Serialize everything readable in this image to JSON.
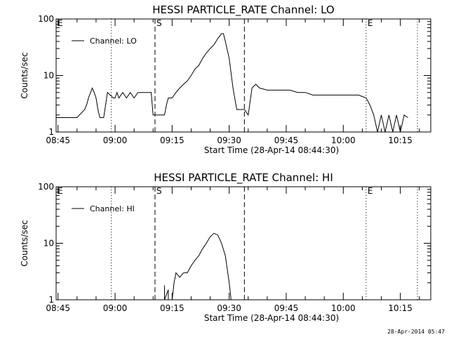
{
  "timestamp": "28-Apr-2014 05:47",
  "chart_data": [
    {
      "type": "line",
      "title": "HESSI PARTICLE_RATE Channel: LO",
      "xlabel": "Start Time (28-Apr-14 08:44:30)",
      "ylabel": "Counts/sec",
      "yscale": "log",
      "ylim": [
        1,
        100
      ],
      "xlim": [
        "08:44:30",
        "10:23:00"
      ],
      "x_ticks": [
        "08:45",
        "09:00",
        "09:15",
        "09:30",
        "09:45",
        "10:00",
        "10:15"
      ],
      "y_ticks": [
        "1",
        "10",
        "100"
      ],
      "legend": "top-left",
      "color": "#000000",
      "markers": [
        {
          "label": "E",
          "time": "08:44:30",
          "style": "none"
        },
        {
          "label": "",
          "time": "08:59:00",
          "style": "dotted"
        },
        {
          "label": "S",
          "time": "09:10:30",
          "style": "dashed"
        },
        {
          "label": "",
          "time": "09:34:00",
          "style": "dashed"
        },
        {
          "label": "E",
          "time": "10:06:00",
          "style": "dotted"
        },
        {
          "label": "",
          "time": "10:19:30",
          "style": "dotted"
        }
      ],
      "series": [
        {
          "name": "Channel: LO",
          "x": [
            "08:44:30",
            "08:46:00",
            "08:48:00",
            "08:50:00",
            "08:52:00",
            "08:52:30",
            "08:53:00",
            "08:54:00",
            "08:54:30",
            "08:55:00",
            "08:55:30",
            "08:56:00",
            "08:56:30",
            "08:57:00",
            "08:58:00",
            "08:59:30",
            "09:00:00",
            "09:00:30",
            "09:01:00",
            "09:02:00",
            "09:03:00",
            "09:04:00",
            "09:05:00",
            "09:06:00",
            "09:07:00",
            "09:08:00",
            "09:09:00",
            "09:09:30",
            "09:10:00",
            "09:11:00",
            "09:12:00",
            "09:13:00",
            "09:13:30",
            "09:14:00",
            "09:15:00",
            "09:16:00",
            "09:17:00",
            "09:18:00",
            "09:19:00",
            "09:20:00",
            "09:21:00",
            "09:22:00",
            "09:23:00",
            "09:24:00",
            "09:25:00",
            "09:26:00",
            "09:27:00",
            "09:28:00",
            "09:28:30",
            "09:29:00",
            "09:30:00",
            "09:31:00",
            "09:32:00",
            "09:33:00",
            "09:34:00",
            "09:35:00",
            "09:36:00",
            "09:37:00",
            "09:38:00",
            "09:40:00",
            "09:42:00",
            "09:44:00",
            "09:46:00",
            "09:48:00",
            "09:50:00",
            "09:52:00",
            "09:54:00",
            "09:56:00",
            "09:58:00",
            "10:00:00",
            "10:02:00",
            "10:04:00",
            "10:06:00",
            "10:07:00",
            "10:08:00",
            "10:09:00",
            "10:10:00",
            "10:11:00",
            "10:12:00",
            "10:13:00",
            "10:14:00",
            "10:15:00",
            "10:16:00",
            "10:17:00"
          ],
          "y": [
            1.8,
            1.8,
            1.8,
            1.8,
            2.5,
            3,
            4,
            6,
            5,
            4,
            2.5,
            1.8,
            1.8,
            1.8,
            5,
            4,
            4,
            5,
            4,
            5,
            4,
            5,
            4,
            5,
            5,
            5,
            5,
            5,
            2,
            2,
            2,
            2,
            3,
            4,
            4,
            5,
            6,
            7,
            8,
            10,
            13,
            15,
            20,
            25,
            30,
            35,
            45,
            55,
            55,
            40,
            20,
            6,
            2.5,
            2.5,
            2.5,
            2,
            6,
            7,
            6,
            5.5,
            5.5,
            5.5,
            5.5,
            5,
            5,
            4.5,
            4.5,
            4.5,
            4.5,
            4.5,
            4.5,
            4.5,
            4,
            3,
            2,
            1,
            2,
            1,
            2,
            1,
            2,
            1,
            2,
            1.8
          ]
        }
      ]
    },
    {
      "type": "line",
      "title": "HESSI PARTICLE_RATE Channel: HI",
      "xlabel": "Start Time (28-Apr-14 08:44:30)",
      "ylabel": "Counts/sec",
      "yscale": "log",
      "ylim": [
        1,
        100
      ],
      "xlim": [
        "08:44:30",
        "10:23:00"
      ],
      "x_ticks": [
        "08:45",
        "09:00",
        "09:15",
        "09:30",
        "09:45",
        "10:00",
        "10:15"
      ],
      "y_ticks": [
        "1",
        "10",
        "100"
      ],
      "legend": "top-left",
      "color": "#000000",
      "markers": [
        {
          "label": "E",
          "time": "08:44:30",
          "style": "none"
        },
        {
          "label": "",
          "time": "08:59:00",
          "style": "dotted"
        },
        {
          "label": "S",
          "time": "09:10:30",
          "style": "dashed"
        },
        {
          "label": "",
          "time": "09:34:00",
          "style": "dashed"
        },
        {
          "label": "E",
          "time": "10:06:00",
          "style": "dotted"
        },
        {
          "label": "",
          "time": "10:19:30",
          "style": "dotted"
        }
      ],
      "series": [
        {
          "name": "Channel: HI",
          "x": [
            "09:13:00",
            "09:13:00",
            "09:14:00",
            "09:14:00",
            "09:15:00",
            "09:15:30",
            "09:16:00",
            "09:17:00",
            "09:18:00",
            "09:19:00",
            "09:20:00",
            "09:21:00",
            "09:22:00",
            "09:23:00",
            "09:24:00",
            "09:25:00",
            "09:26:00",
            "09:27:00",
            "09:28:00",
            "09:29:00",
            "09:30:00",
            "09:30:30"
          ],
          "y": [
            1.8,
            1,
            1.5,
            1,
            1,
            2,
            3,
            2.5,
            3,
            3,
            4,
            5,
            6,
            8,
            10,
            13,
            15,
            14,
            10,
            6,
            2,
            1
          ]
        }
      ]
    }
  ]
}
